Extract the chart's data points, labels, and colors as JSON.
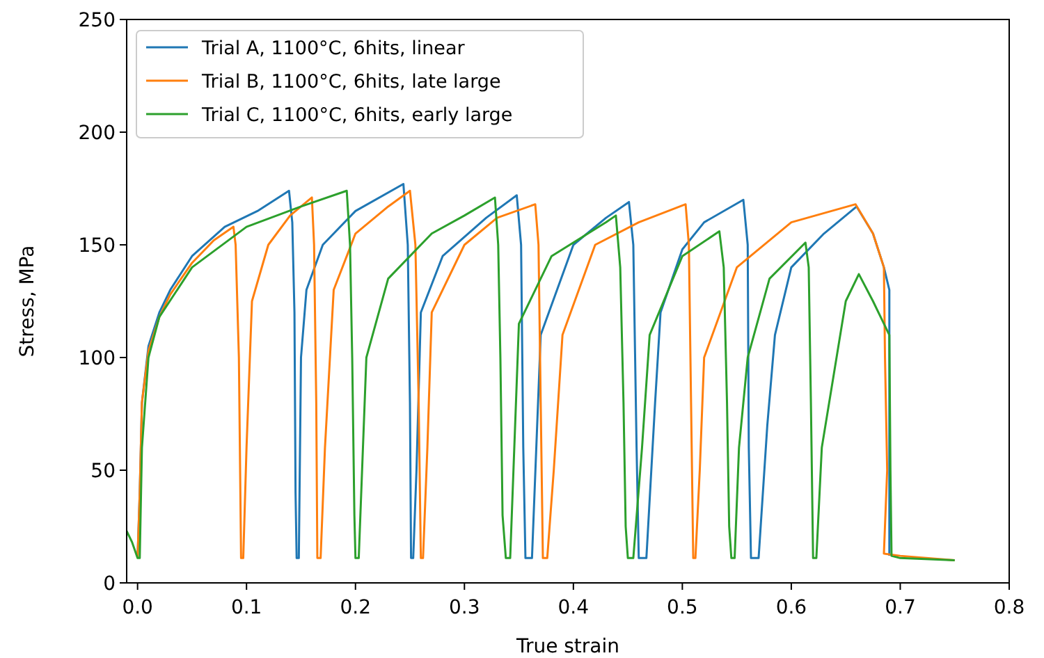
{
  "chart_data": {
    "type": "line",
    "xlabel": "True strain",
    "ylabel": "Stress, MPa",
    "xlim": [
      -0.01,
      0.8
    ],
    "ylim": [
      0,
      250
    ],
    "xticks": [
      {
        "value": 0,
        "label": "0.0"
      },
      {
        "value": 0.1,
        "label": "0.1"
      },
      {
        "value": 0.2,
        "label": "0.2"
      },
      {
        "value": 0.3,
        "label": "0.3"
      },
      {
        "value": 0.4,
        "label": "0.4"
      },
      {
        "value": 0.5,
        "label": "0.5"
      },
      {
        "value": 0.6,
        "label": "0.6"
      },
      {
        "value": 0.7,
        "label": "0.7"
      },
      {
        "value": 0.8,
        "label": "0.8"
      }
    ],
    "yticks": [
      0,
      50,
      100,
      150,
      200,
      250
    ],
    "grid": false,
    "legend": "top left",
    "line_style": "solid",
    "series": [
      {
        "name": "Trial A, 1100°C, 6hits, linear",
        "color": "#1f77b4",
        "x": [
          0,
          0.002,
          0.004,
          0.01,
          0.02,
          0.03,
          0.05,
          0.08,
          0.11,
          0.139,
          0.142,
          0.144,
          0.145,
          0.146,
          0.148,
          0.15,
          0.155,
          0.17,
          0.2,
          0.244,
          0.248,
          0.25,
          0.251,
          0.253,
          0.256,
          0.26,
          0.28,
          0.32,
          0.348,
          0.352,
          0.354,
          0.356,
          0.362,
          0.37,
          0.4,
          0.43,
          0.451,
          0.455,
          0.458,
          0.46,
          0.467,
          0.475,
          0.48,
          0.5,
          0.52,
          0.556,
          0.56,
          0.561,
          0.563,
          0.57,
          0.578,
          0.585,
          0.6,
          0.63,
          0.66,
          0.675,
          0.685,
          0.69,
          0.69
        ],
        "values": [
          11,
          40,
          80,
          105,
          120,
          130,
          145,
          158,
          165,
          174,
          160,
          120,
          40,
          11,
          11,
          100,
          130,
          150,
          165,
          177,
          150,
          80,
          11,
          11,
          50,
          120,
          145,
          162,
          172,
          150,
          60,
          11,
          11,
          110,
          150,
          162,
          169,
          150,
          60,
          11,
          11,
          80,
          120,
          148,
          160,
          170,
          150,
          60,
          11,
          11,
          70,
          110,
          140,
          155,
          167,
          155,
          140,
          130,
          12
        ]
      },
      {
        "name": "Trial B, 1100°C, 6hits, late large",
        "color": "#ff7f0e",
        "x": [
          0,
          0.002,
          0.004,
          0.01,
          0.02,
          0.03,
          0.05,
          0.07,
          0.088,
          0.09,
          0.093,
          0.095,
          0.097,
          0.1,
          0.105,
          0.12,
          0.14,
          0.16,
          0.162,
          0.164,
          0.165,
          0.168,
          0.172,
          0.18,
          0.2,
          0.23,
          0.25,
          0.255,
          0.258,
          0.26,
          0.262,
          0.266,
          0.27,
          0.3,
          0.33,
          0.365,
          0.368,
          0.37,
          0.372,
          0.376,
          0.382,
          0.39,
          0.42,
          0.46,
          0.503,
          0.506,
          0.508,
          0.51,
          0.512,
          0.516,
          0.52,
          0.55,
          0.6,
          0.659,
          0.675,
          0.685,
          0.686,
          0.688,
          0.685,
          0.7,
          0.75
        ],
        "values": [
          11,
          40,
          80,
          103,
          118,
          128,
          142,
          152,
          158,
          150,
          100,
          11,
          11,
          60,
          125,
          150,
          163,
          171,
          150,
          80,
          11,
          11,
          60,
          130,
          155,
          167,
          174,
          150,
          80,
          11,
          11,
          60,
          120,
          150,
          162,
          168,
          150,
          80,
          11,
          11,
          50,
          110,
          150,
          160,
          168,
          150,
          80,
          11,
          11,
          50,
          100,
          140,
          160,
          168,
          155,
          140,
          100,
          50,
          13,
          12,
          10
        ]
      },
      {
        "name": "Trial C, 1100°C, 6hits, early large",
        "color": "#2ca02c",
        "x": [
          -0.01,
          -0.005,
          0,
          0.002,
          0.004,
          0.01,
          0.02,
          0.05,
          0.1,
          0.15,
          0.192,
          0.195,
          0.197,
          0.199,
          0.2,
          0.203,
          0.21,
          0.23,
          0.27,
          0.3,
          0.328,
          0.331,
          0.333,
          0.335,
          0.338,
          0.342,
          0.35,
          0.38,
          0.43,
          0.439,
          0.443,
          0.446,
          0.448,
          0.45,
          0.455,
          0.463,
          0.47,
          0.5,
          0.534,
          0.538,
          0.541,
          0.543,
          0.545,
          0.548,
          0.552,
          0.56,
          0.58,
          0.613,
          0.616,
          0.618,
          0.62,
          0.623,
          0.628,
          0.65,
          0.662,
          0.675,
          0.69,
          0.691,
          0.692,
          0.7,
          0.75
        ],
        "values": [
          23,
          18,
          11,
          11,
          60,
          100,
          118,
          140,
          158,
          167,
          174,
          150,
          100,
          30,
          11,
          11,
          100,
          135,
          155,
          163,
          171,
          150,
          100,
          30,
          11,
          11,
          115,
          145,
          160,
          163,
          140,
          80,
          25,
          11,
          11,
          60,
          110,
          145,
          156,
          140,
          80,
          25,
          11,
          11,
          60,
          100,
          135,
          151,
          140,
          80,
          11,
          11,
          60,
          125,
          137,
          125,
          110,
          50,
          12,
          11,
          10
        ]
      }
    ]
  }
}
